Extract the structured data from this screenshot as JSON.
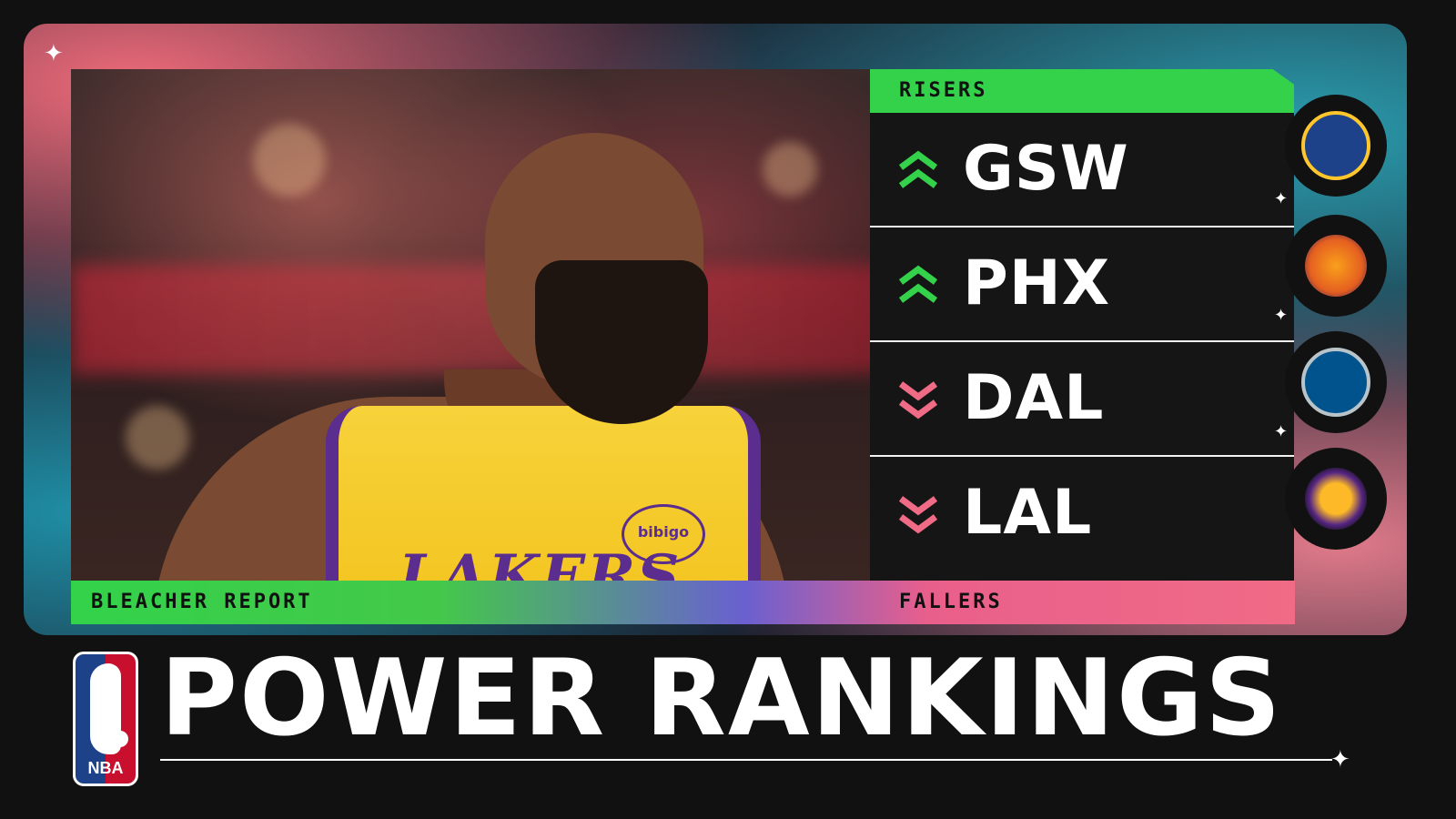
{
  "header": {
    "brand": "BLEACHER REPORT"
  },
  "risers": {
    "label": "RISERS",
    "color": "#33d24a",
    "teams": [
      {
        "abbr": "GSW",
        "icon": "golden-state-warriors-logo",
        "direction": "up"
      },
      {
        "abbr": "PHX",
        "icon": "phoenix-suns-logo",
        "direction": "up"
      }
    ]
  },
  "fallers": {
    "label": "FALLERS",
    "color": "#f06b86",
    "teams": [
      {
        "abbr": "DAL",
        "icon": "dallas-mavericks-logo",
        "direction": "down"
      },
      {
        "abbr": "LAL",
        "icon": "los-angeles-lakers-logo",
        "direction": "down"
      }
    ]
  },
  "photo": {
    "jersey_text": "LAKERS",
    "sponsor_text": "bibigo"
  },
  "footer": {
    "logo_text": "NBA",
    "title": "POWER RANKINGS"
  }
}
